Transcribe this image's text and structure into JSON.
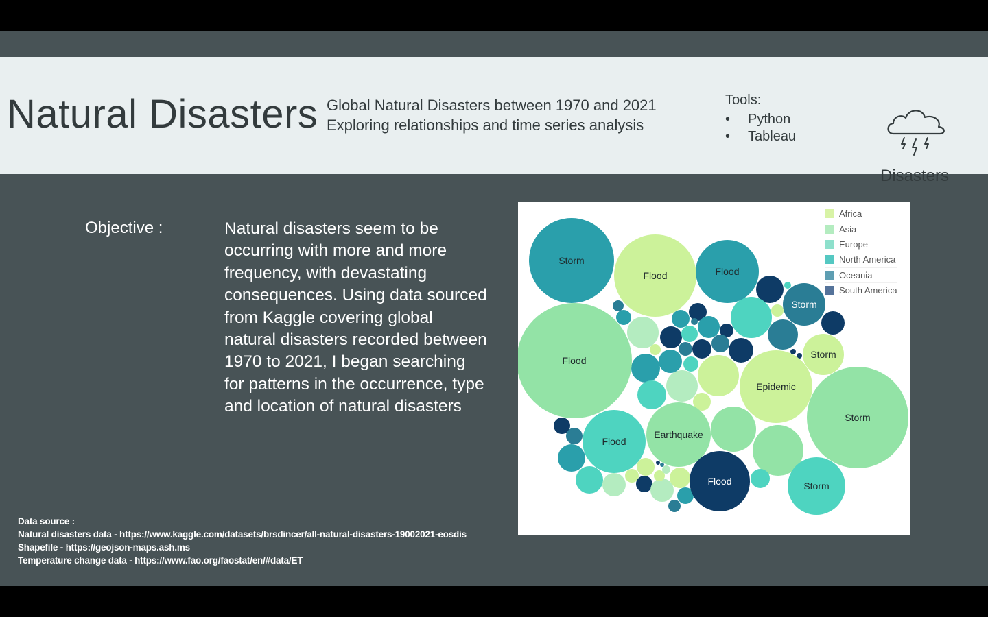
{
  "header": {
    "title": "Natural Disasters",
    "subtitle_line1": "Global Natural Disasters between 1970 and 2021",
    "subtitle_line2": "Exploring relationships and time series analysis",
    "tools_title": "Tools:",
    "tools": [
      "Python",
      "Tableau"
    ],
    "icon": "thunderstorm-cloud-icon",
    "icon_label": "Disasters"
  },
  "objective": {
    "label": "Objective :",
    "text": "Natural disasters seem to be occurring with more and more frequency, with devastating consequences. Using data sourced from Kaggle covering global natural disasters recorded between 1970 to 2021, I began searching for patterns in the occurrence, type and location of natural disasters"
  },
  "sources": {
    "title": "Data source :",
    "lines": [
      "Natural disasters data - https://www.kaggle.com/datasets/brsdincer/all-natural-disasters-19002021-eosdis",
      "Shapefile - https://geojson-maps.ash.ms",
      "Temperature change data - https://www.fao.org/faostat/en/#data/ET"
    ]
  },
  "chart_data": {
    "type": "bubble",
    "legend": [
      {
        "name": "Africa",
        "color": "#d8f3a6"
      },
      {
        "name": "Asia",
        "color": "#b4ecc0"
      },
      {
        "name": "Europe",
        "color": "#8ee0cc"
      },
      {
        "name": "North America",
        "color": "#55c8c2"
      },
      {
        "name": "Oceania",
        "color": "#5e9eb2"
      },
      {
        "name": "South America",
        "color": "#55739a"
      }
    ],
    "labeled_bubbles": [
      {
        "label": "Storm",
        "color": "#2a9fab"
      },
      {
        "label": "Flood",
        "color": "#ccf29a"
      },
      {
        "label": "Flood",
        "color": "#2a9fab"
      },
      {
        "label": "Storm",
        "color": "#2a7d95"
      },
      {
        "label": "Flood",
        "color": "#93e3a6"
      },
      {
        "label": "Storm",
        "color": "#ccf29a"
      },
      {
        "label": "Epidemic",
        "color": "#ccf29a"
      },
      {
        "label": "Storm",
        "color": "#93e3a6"
      },
      {
        "label": "Flood",
        "color": "#4ed4c0"
      },
      {
        "label": "Earthquake",
        "color": "#93e3a6"
      },
      {
        "label": "Flood",
        "color": "#0e3b66"
      },
      {
        "label": "Storm",
        "color": "#4ed4c0"
      }
    ]
  }
}
